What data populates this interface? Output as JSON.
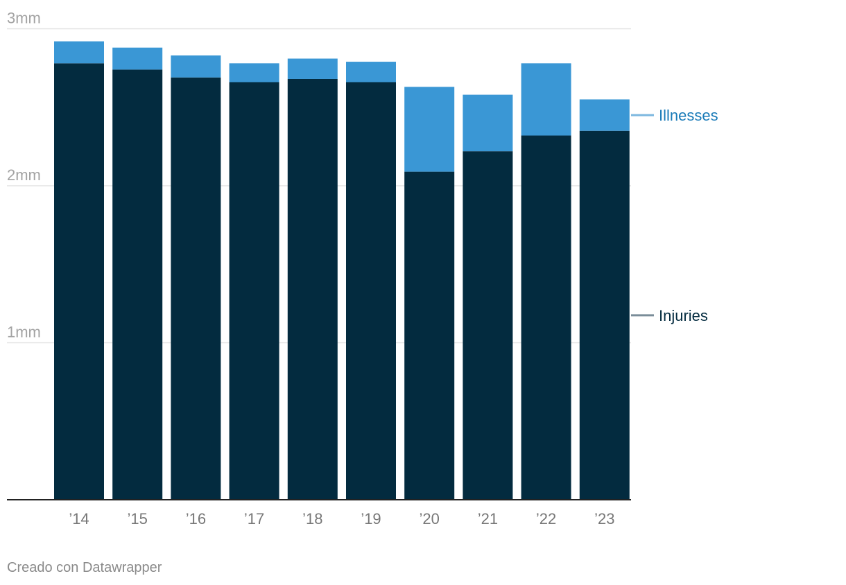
{
  "chart_data": {
    "type": "bar",
    "stacked": true,
    "categories": [
      "’14",
      "’15",
      "’16",
      "’17",
      "’18",
      "’19",
      "’20",
      "’21",
      "’22",
      "’23"
    ],
    "series": [
      {
        "name": "Injuries",
        "color": "#032b3f",
        "label_color": "#032b3f",
        "line_color": "#7a8d99",
        "values": [
          2.78,
          2.74,
          2.69,
          2.66,
          2.68,
          2.66,
          2.09,
          2.22,
          2.32,
          2.35
        ]
      },
      {
        "name": "Illnesses",
        "color": "#3a97d5",
        "label_color": "#1a7bb8",
        "line_color": "#7cb7df",
        "values": [
          0.14,
          0.14,
          0.14,
          0.12,
          0.13,
          0.13,
          0.54,
          0.36,
          0.46,
          0.2
        ]
      }
    ],
    "y_ticks": [
      {
        "value": 1,
        "label": "1mm"
      },
      {
        "value": 2,
        "label": "2mm"
      },
      {
        "value": 3,
        "label": "3mm"
      }
    ],
    "ylim": [
      0,
      3.1
    ],
    "grid": true,
    "legend": "direct-labels-right"
  },
  "footer": {
    "credit": "Creado con Datawrapper"
  }
}
